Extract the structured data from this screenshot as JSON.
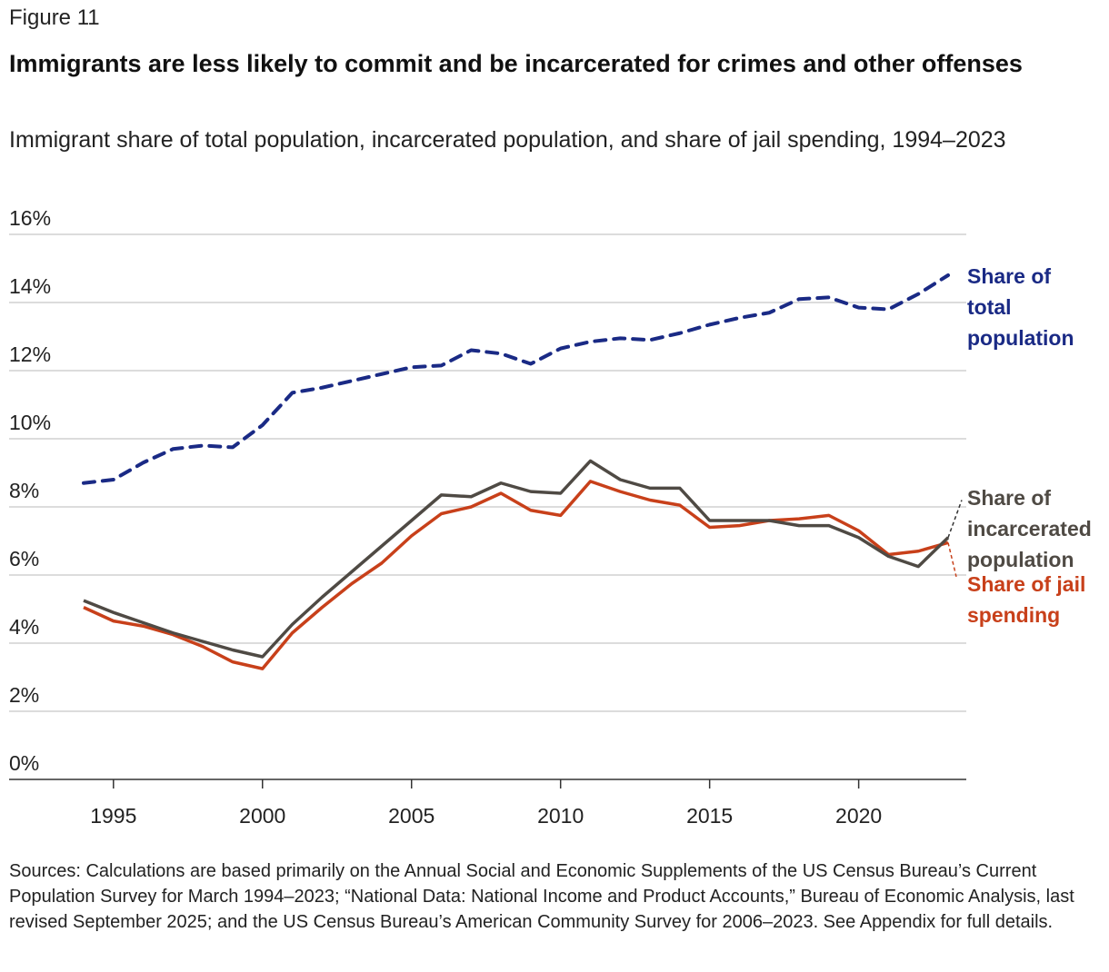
{
  "figure_label": "Figure 11",
  "title": "Immigrants are less likely to commit and be incarcerated for crimes and other offenses",
  "subtitle": "Immigrant share of total population, incarcerated population, and share of jail spending, 1994–2023",
  "sources": "Sources: Calculations are based primarily on the Annual Social and Economic Supplements of the US Census Bureau’s Current Population Survey for March 1994–2023; “National Data: National Income and Product Accounts,” Bureau of Economic Analysis, last revised September 2025; and the US Census Bureau’s American Community Survey for 2006–2023. See Appendix for full details.",
  "chart_data": {
    "type": "line",
    "x": [
      1994,
      1995,
      1996,
      1997,
      1998,
      1999,
      2000,
      2001,
      2002,
      2003,
      2004,
      2005,
      2006,
      2007,
      2008,
      2009,
      2010,
      2011,
      2012,
      2013,
      2014,
      2015,
      2016,
      2017,
      2018,
      2019,
      2020,
      2021,
      2022,
      2023
    ],
    "xticks": [
      1995,
      2000,
      2005,
      2010,
      2015,
      2020
    ],
    "yticks": [
      0,
      2,
      4,
      6,
      8,
      10,
      12,
      14,
      16
    ],
    "ytick_labels": [
      "0%",
      "2%",
      "4%",
      "6%",
      "8%",
      "10%",
      "12%",
      "14%",
      "16%"
    ],
    "ylim": [
      0,
      16
    ],
    "xlim": [
      1994,
      2023
    ],
    "grid": "horizontal",
    "legend": "direct labels at right",
    "series": [
      {
        "name": "Share of total population",
        "label_lines": [
          "Share of",
          "total",
          "population"
        ],
        "color": "#1a2a85",
        "dashed": true,
        "values": [
          8.7,
          8.8,
          9.3,
          9.7,
          9.8,
          9.75,
          10.4,
          11.35,
          11.5,
          11.7,
          11.9,
          12.1,
          12.15,
          12.6,
          12.5,
          12.2,
          12.65,
          12.85,
          12.95,
          12.9,
          13.1,
          13.35,
          13.55,
          13.7,
          14.1,
          14.15,
          13.85,
          13.8,
          14.25,
          14.8
        ]
      },
      {
        "name": "Share of incarcerated population",
        "label_lines": [
          "Share of",
          "incarcerated",
          "population"
        ],
        "color": "#4f4a44",
        "dashed": false,
        "values": [
          5.25,
          4.9,
          4.6,
          4.3,
          4.05,
          3.8,
          3.6,
          4.55,
          5.35,
          6.1,
          6.85,
          7.6,
          8.35,
          8.3,
          8.7,
          8.45,
          8.4,
          9.35,
          8.8,
          8.55,
          8.55,
          7.6,
          7.6,
          7.6,
          7.45,
          7.45,
          7.1,
          6.55,
          6.25,
          7.1
        ]
      },
      {
        "name": "Share of jail spending",
        "label_lines": [
          "Share of jail",
          "spending"
        ],
        "color": "#c8401a",
        "dashed": false,
        "values": [
          5.05,
          4.65,
          4.5,
          4.25,
          3.9,
          3.45,
          3.25,
          4.3,
          5.05,
          5.75,
          6.35,
          7.15,
          7.8,
          8.0,
          8.4,
          7.9,
          7.75,
          8.75,
          8.45,
          8.2,
          8.05,
          7.4,
          7.45,
          7.6,
          7.65,
          7.75,
          7.3,
          6.6,
          6.7,
          6.95
        ]
      }
    ]
  }
}
